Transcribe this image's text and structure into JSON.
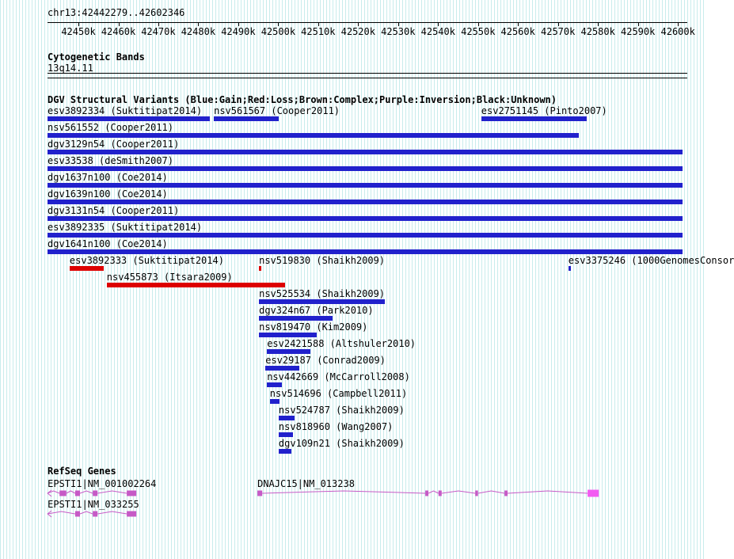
{
  "colors": {
    "gain_blue": "#2121cc",
    "loss_red": "#dd0000",
    "gene_magenta": "#c65ac6",
    "gene_utr_pink": "#f25bf2",
    "grid_stripe": "#c8ecec"
  },
  "region": {
    "label": "chr13:42442279..42602346"
  },
  "sections": {
    "cytobands": {
      "title": "Cytogenetic Bands",
      "band": "13q14.11"
    },
    "dgv_title": "DGV Structural Variants (Blue:Gain;Red:Loss;Brown:Complex;Purple:Inversion;Black:Unknown)",
    "refseq_title": "RefSeq Genes"
  },
  "chart_data": {
    "type": "genome-browser-tracks",
    "region": {
      "chrom": "chr13",
      "start": 42442279,
      "end": 42602346
    },
    "ruler_ticks": [
      {
        "bp": 42450000,
        "label": "42450k"
      },
      {
        "bp": 42460000,
        "label": "42460k"
      },
      {
        "bp": 42470000,
        "label": "42470k"
      },
      {
        "bp": 42480000,
        "label": "42480k"
      },
      {
        "bp": 42490000,
        "label": "42490k"
      },
      {
        "bp": 42500000,
        "label": "42500k"
      },
      {
        "bp": 42510000,
        "label": "42510k"
      },
      {
        "bp": 42520000,
        "label": "42520k"
      },
      {
        "bp": 42530000,
        "label": "42530k"
      },
      {
        "bp": 42540000,
        "label": "42540k"
      },
      {
        "bp": 42550000,
        "label": "42550k"
      },
      {
        "bp": 42560000,
        "label": "42560k"
      },
      {
        "bp": 42570000,
        "label": "42570k"
      },
      {
        "bp": 42580000,
        "label": "42580k"
      },
      {
        "bp": 42590000,
        "label": "42590k"
      },
      {
        "bp": 42600000,
        "label": "42600k"
      }
    ],
    "variant_rows": [
      [
        {
          "label": "esv3892334 (Suktitipat2014)",
          "type": "gain",
          "start": 42442279,
          "end": 42482900
        },
        {
          "label": "nsv561567 (Cooper2011)",
          "type": "gain",
          "start": 42483900,
          "end": 42500100
        },
        {
          "label": "esv2751145 (Pinto2007)",
          "type": "gain",
          "start": 42550800,
          "end": 42577200
        }
      ],
      [
        {
          "label": "nsv561552 (Cooper2011)",
          "type": "gain",
          "start": 42442279,
          "end": 42575200
        }
      ],
      [
        {
          "label": "dgv3129n54 (Cooper2011)",
          "type": "gain",
          "start": 42442279,
          "end": 42601200
        }
      ],
      [
        {
          "label": "esv33538 (deSmith2007)",
          "type": "gain",
          "start": 42442279,
          "end": 42601200
        }
      ],
      [
        {
          "label": "dgv1637n100 (Coe2014)",
          "type": "gain",
          "start": 42442279,
          "end": 42601200
        }
      ],
      [
        {
          "label": "dgv1639n100 (Coe2014)",
          "type": "gain",
          "start": 42442279,
          "end": 42601200
        }
      ],
      [
        {
          "label": "dgv3131n54 (Cooper2011)",
          "type": "gain",
          "start": 42442279,
          "end": 42601200
        }
      ],
      [
        {
          "label": "esv3892335 (Suktitipat2014)",
          "type": "gain",
          "start": 42442279,
          "end": 42601200
        }
      ],
      [
        {
          "label": "dgv1641n100 (Coe2014)",
          "type": "gain",
          "start": 42442279,
          "end": 42601200
        }
      ],
      [
        {
          "label": "esv3892333 (Suktitipat2014)",
          "type": "loss",
          "start": 42447800,
          "end": 42456300
        },
        {
          "label": "nsv519830 (Shaikh2009)",
          "type": "loss",
          "start": 42495200,
          "end": 42495800
        },
        {
          "label": "esv3375246 (1000GenomesConsor",
          "type": "gain",
          "start": 42572600,
          "end": 42573200
        }
      ],
      [
        {
          "label": "nsv455873 (Itsara2009)",
          "type": "loss",
          "start": 42457100,
          "end": 42501700
        }
      ],
      [
        {
          "label": "nsv525534 (Shaikh2009)",
          "type": "gain",
          "start": 42495200,
          "end": 42526700
        }
      ],
      [
        {
          "label": "dgv324n67 (Park2010)",
          "type": "gain",
          "start": 42495200,
          "end": 42513600
        }
      ],
      [
        {
          "label": "nsv819470 (Kim2009)",
          "type": "gain",
          "start": 42495200,
          "end": 42509600
        }
      ],
      [
        {
          "label": "esv2421588 (Altshuler2010)",
          "type": "gain",
          "start": 42497200,
          "end": 42508000
        }
      ],
      [
        {
          "label": "esv29187 (Conrad2009)",
          "type": "gain",
          "start": 42496800,
          "end": 42505300
        }
      ],
      [
        {
          "label": "nsv442669 (McCarroll2008)",
          "type": "gain",
          "start": 42497200,
          "end": 42500900
        }
      ],
      [
        {
          "label": "nsv514696 (Campbell2011)",
          "type": "gain",
          "start": 42497900,
          "end": 42500300
        }
      ],
      [
        {
          "label": "nsv524787 (Shaikh2009)",
          "type": "gain",
          "start": 42500100,
          "end": 42504100
        }
      ],
      [
        {
          "label": "nsv818960 (Wang2007)",
          "type": "gain",
          "start": 42500100,
          "end": 42503700
        }
      ],
      [
        {
          "label": "dgv109n21 (Shaikh2009)",
          "type": "gain",
          "start": 42500100,
          "end": 42503300
        }
      ]
    ],
    "gene_rows": [
      [
        {
          "label": "EPSTI1|NM_001002264",
          "strand": "-",
          "start": 42442300,
          "end": 42464500,
          "exons": [
            [
              42445300,
              42447000
            ],
            [
              42449200,
              42450400
            ],
            [
              42453600,
              42454800
            ],
            [
              42462100,
              42464500
            ]
          ]
        },
        {
          "label": "DNAJC15|NM_013238",
          "strand": "-",
          "start": 42494800,
          "end": 42580200,
          "exons": [
            [
              42494800,
              42496000
            ],
            [
              42536800,
              42537600
            ],
            [
              42540100,
              42540900
            ],
            [
              42549300,
              42550000
            ],
            [
              42556600,
              42557400
            ]
          ],
          "utr": [
            42577400,
            42580200
          ]
        }
      ],
      [
        {
          "label": "EPSTI1|NM_033255",
          "strand": "-",
          "start": 42442300,
          "end": 42464500,
          "exons": [
            [
              42449200,
              42450400
            ],
            [
              42453600,
              42454800
            ],
            [
              42462100,
              42464500
            ]
          ]
        }
      ]
    ]
  }
}
